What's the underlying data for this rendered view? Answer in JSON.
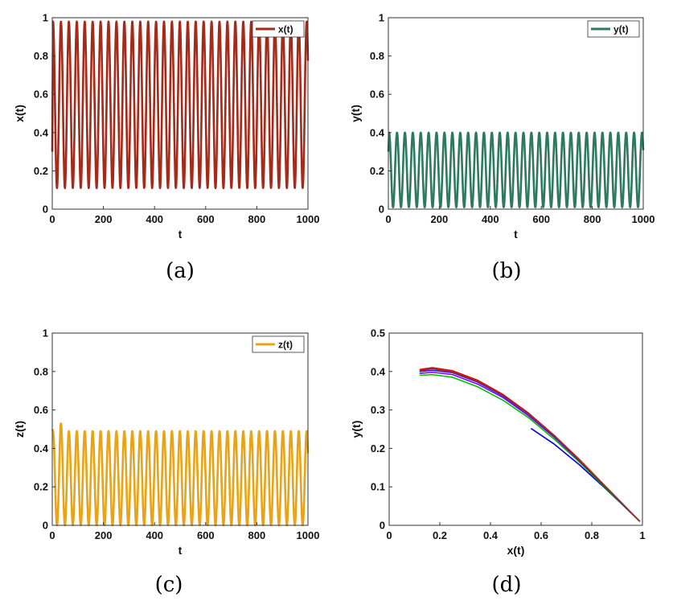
{
  "captions": [
    "(a)",
    "(b)",
    "(c)",
    "(d)"
  ],
  "chart_data": [
    {
      "id": "a",
      "type": "line",
      "xlabel": "t",
      "ylabel": "x(t)",
      "xlim": [
        0,
        1000
      ],
      "ylim": [
        0,
        1
      ],
      "xticks": [
        0,
        200,
        400,
        600,
        800,
        1000
      ],
      "yticks": [
        0,
        0.2,
        0.4,
        0.6,
        0.8,
        1
      ],
      "ytick_labels": [
        "0",
        "0.2",
        "0.4",
        "0.6",
        "0.8",
        "1"
      ],
      "grid": false,
      "legend_position": "top-right",
      "series": [
        {
          "name": "x(t)",
          "color": "#a52a1a",
          "oscillation": {
            "start": 0.3,
            "min": 0.11,
            "max": 0.98,
            "period_t": 31
          }
        }
      ]
    },
    {
      "id": "b",
      "type": "line",
      "xlabel": "t",
      "ylabel": "y(t)",
      "xlim": [
        0,
        1000
      ],
      "ylim": [
        0,
        1
      ],
      "xticks": [
        0,
        200,
        400,
        600,
        800,
        1000
      ],
      "yticks": [
        0,
        0.2,
        0.4,
        0.6,
        0.8,
        1
      ],
      "ytick_labels": [
        "0",
        "0.2",
        "0.4",
        "0.6",
        "0.8",
        "1"
      ],
      "grid": false,
      "legend_position": "top-right",
      "series": [
        {
          "name": "y(t)",
          "color": "#2e7a5e",
          "oscillation": {
            "start": 0.3,
            "min": 0.01,
            "max": 0.4,
            "period_t": 31
          }
        }
      ]
    },
    {
      "id": "c",
      "type": "line",
      "xlabel": "t",
      "ylabel": "z(t)",
      "xlim": [
        0,
        1000
      ],
      "ylim": [
        0,
        1
      ],
      "xticks": [
        0,
        200,
        400,
        600,
        800,
        1000
      ],
      "yticks": [
        0,
        0.2,
        0.4,
        0.6,
        0.8,
        1
      ],
      "ytick_labels": [
        "0",
        "0.2",
        "0.4",
        "0.6",
        "0.8",
        "1"
      ],
      "grid": false,
      "legend_position": "top-right",
      "series": [
        {
          "name": "z(t)",
          "color": "#e8a317",
          "oscillation": {
            "start": 0.5,
            "min": 0.0,
            "max": 0.49,
            "period_t": 31,
            "first_peak": 0.53
          }
        }
      ]
    },
    {
      "id": "d",
      "type": "line",
      "xlabel": "x(t)",
      "ylabel": "y(t)",
      "xlim": [
        0,
        1
      ],
      "ylim": [
        0,
        0.5
      ],
      "xticks": [
        0,
        0.2,
        0.4,
        0.6,
        0.8,
        1
      ],
      "xtick_labels": [
        "0",
        "0.2",
        "0.4",
        "0.6",
        "0.8",
        "1"
      ],
      "yticks": [
        0,
        0.1,
        0.2,
        0.3,
        0.4,
        0.5
      ],
      "ytick_labels": [
        "0",
        "0.1",
        "0.2",
        "0.3",
        "0.4",
        "0.5"
      ],
      "grid": false,
      "series": [
        {
          "color": "#0000e0",
          "x": [
            0.56,
            0.65,
            0.75,
            0.85,
            0.93,
            0.99
          ],
          "y": [
            0.252,
            0.212,
            0.158,
            0.098,
            0.048,
            0.01
          ]
        },
        {
          "color": "#00c000",
          "x": [
            0.12,
            0.17,
            0.25,
            0.35,
            0.45,
            0.55,
            0.65,
            0.75,
            0.85,
            0.93,
            0.99
          ],
          "y": [
            0.39,
            0.392,
            0.385,
            0.36,
            0.325,
            0.28,
            0.225,
            0.165,
            0.1,
            0.048,
            0.01
          ]
        },
        {
          "color": "#8000ff",
          "x": [
            0.12,
            0.17,
            0.25,
            0.35,
            0.45,
            0.55,
            0.65,
            0.75,
            0.85,
            0.93,
            0.99
          ],
          "y": [
            0.395,
            0.398,
            0.392,
            0.367,
            0.332,
            0.285,
            0.23,
            0.168,
            0.102,
            0.049,
            0.01
          ]
        },
        {
          "color": "#1a1aff",
          "x": [
            0.12,
            0.17,
            0.25,
            0.35,
            0.45,
            0.55,
            0.65,
            0.75,
            0.85,
            0.93,
            0.99
          ],
          "y": [
            0.4,
            0.403,
            0.397,
            0.372,
            0.336,
            0.289,
            0.233,
            0.17,
            0.103,
            0.049,
            0.01
          ]
        },
        {
          "color": "#e00000",
          "x": [
            0.12,
            0.17,
            0.25,
            0.35,
            0.45,
            0.55,
            0.65,
            0.75,
            0.85,
            0.93,
            0.99
          ],
          "y": [
            0.405,
            0.41,
            0.402,
            0.377,
            0.34,
            0.292,
            0.235,
            0.172,
            0.104,
            0.05,
            0.01
          ]
        },
        {
          "color": "#a52a1a",
          "x": [
            0.12,
            0.17,
            0.25,
            0.35,
            0.45,
            0.55,
            0.65,
            0.75,
            0.85,
            0.93,
            0.99
          ],
          "y": [
            0.402,
            0.407,
            0.399,
            0.374,
            0.338,
            0.29,
            0.234,
            0.171,
            0.104,
            0.05,
            0.01
          ]
        }
      ]
    }
  ]
}
